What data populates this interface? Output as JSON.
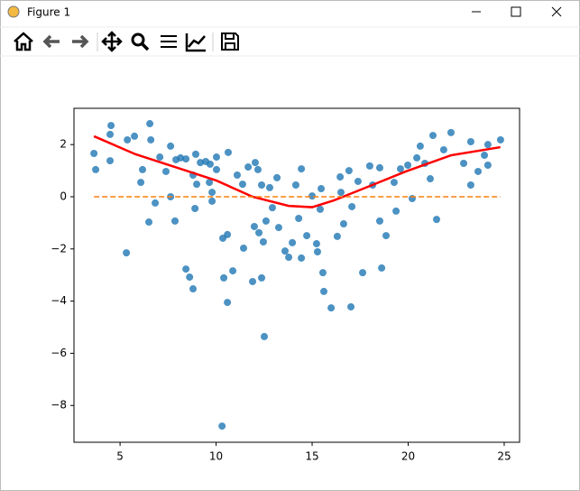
{
  "window": {
    "title": "Figure 1"
  },
  "chart_data": {
    "type": "scatter",
    "x": [
      3.64,
      3.73,
      4.53,
      4.48,
      4.48,
      5.33,
      5.38,
      5.75,
      6.08,
      6.17,
      6.55,
      6.6,
      6.5,
      6.83,
      7.07,
      7.39,
      7.63,
      7.63,
      7.86,
      7.91,
      8.15,
      8.43,
      8.43,
      8.62,
      8.8,
      8.8,
      8.94,
      8.9,
      8.99,
      9.18,
      9.46,
      9.69,
      9.65,
      9.79,
      9.79,
      10.02,
      10.02,
      10.31,
      10.35,
      10.4,
      10.63,
      10.59,
      10.59,
      10.87,
      11.1,
      11.38,
      11.43,
      11.67,
      11.9,
      11.99,
      12.04,
      12.18,
      12.23,
      12.37,
      12.37,
      12.51,
      12.46,
      12.6,
      12.79,
      12.93,
      13.17,
      13.26,
      13.59,
      13.78,
      13.97,
      14.15,
      14.3,
      14.44,
      14.44,
      14.72,
      15.0,
      15.23,
      15.28,
      15.42,
      15.47,
      15.56,
      15.61,
      15.99,
      16.31,
      16.46,
      16.5,
      16.64,
      16.92,
      17.02,
      17.07,
      17.39,
      17.63,
      18.0,
      18.15,
      18.52,
      18.52,
      18.62,
      18.85,
      19.27,
      19.37,
      19.6,
      19.98,
      20.21,
      20.45,
      20.63,
      20.87,
      21.15,
      21.29,
      21.48,
      21.85,
      22.23,
      22.89,
      23.26,
      23.26,
      23.64,
      23.97,
      24.15,
      24.15,
      24.81
    ],
    "y": [
      1.66,
      1.04,
      2.73,
      2.39,
      1.38,
      -2.15,
      2.18,
      2.32,
      0.55,
      1.04,
      2.8,
      2.18,
      -0.97,
      -0.24,
      1.52,
      0.97,
      1.94,
      0.0,
      -0.93,
      1.42,
      1.49,
      1.45,
      -2.77,
      -3.08,
      -3.53,
      0.83,
      1.63,
      -0.45,
      0.48,
      1.31,
      1.35,
      1.25,
      0.55,
      0.17,
      -0.17,
      1.04,
      1.52,
      -8.79,
      -1.59,
      -3.11,
      1.7,
      -1.45,
      -4.05,
      -2.84,
      0.83,
      0.48,
      -1.97,
      1.14,
      -3.25,
      -1.14,
      1.31,
      1.04,
      -1.38,
      -3.11,
      0.45,
      -5.36,
      -1.73,
      -0.93,
      0.35,
      -0.42,
      0.73,
      -1.18,
      -2.08,
      -2.32,
      -1.76,
      0.45,
      -0.83,
      1.07,
      -2.35,
      -1.49,
      0.03,
      -1.8,
      -2.11,
      -0.48,
      0.31,
      -2.91,
      -3.63,
      -4.26,
      -1.52,
      0.76,
      0.17,
      -1.04,
      1.0,
      -4.22,
      -0.38,
      0.59,
      -2.91,
      1.18,
      0.45,
      1.11,
      -0.93,
      -2.73,
      -1.49,
      0.55,
      -0.55,
      1.07,
      1.21,
      -0.07,
      1.49,
      1.94,
      1.28,
      0.69,
      2.35,
      -0.87,
      1.8,
      2.46,
      1.28,
      2.11,
      0.45,
      0.97,
      1.59,
      2.0,
      1.21,
      2.18
    ],
    "color": "#1f77b4",
    "lines": [
      {
        "x": [
          3.64,
          5.8,
          8.15,
          10.02,
          11.9,
          13.78,
          15.0,
          16.13,
          18.0,
          19.88,
          22.23,
          24.8
        ],
        "y": [
          2.32,
          1.63,
          1.07,
          0.62,
          0.0,
          -0.35,
          -0.4,
          -0.14,
          0.41,
          0.97,
          1.59,
          1.9
        ],
        "color": "#ff0000",
        "style": "solid"
      },
      {
        "x": [
          3.64,
          24.8
        ],
        "y": [
          0,
          0
        ],
        "color": "#ff7f0e",
        "style": "dashed"
      }
    ],
    "xlim": [
      2.6,
      25.8
    ],
    "ylim": [
      -9.41,
      3.39
    ],
    "xticks": [
      5,
      10,
      15,
      20,
      25
    ],
    "yticks": [
      2,
      0,
      {
        "value": -2,
        "label": "−2"
      },
      {
        "value": -4,
        "label": "−4"
      },
      {
        "value": -6,
        "label": "−6"
      },
      {
        "value": -8,
        "label": "−8"
      }
    ]
  }
}
